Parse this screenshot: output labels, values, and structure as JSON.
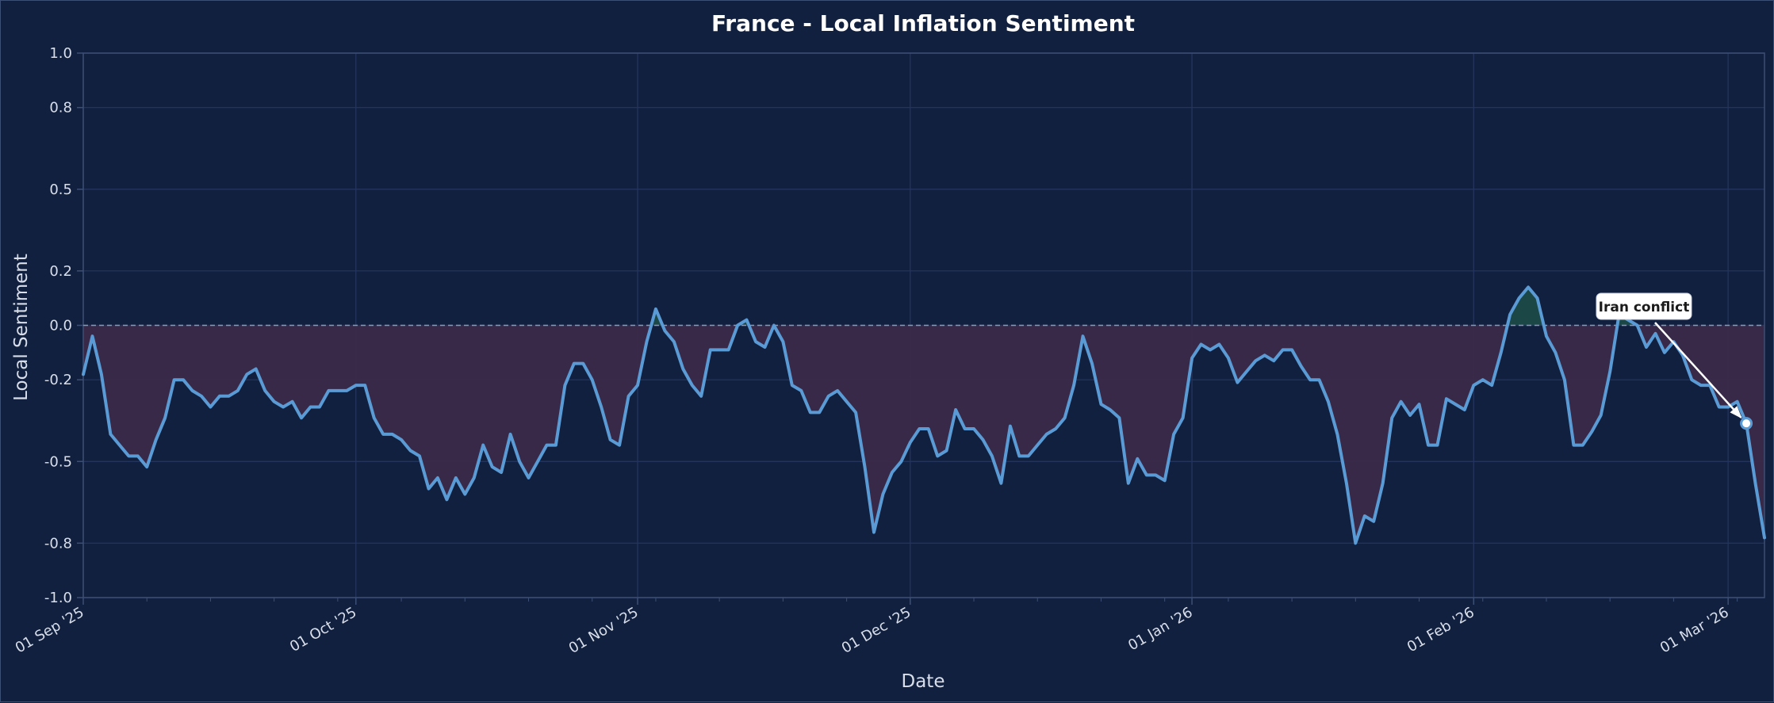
{
  "chart_data": {
    "type": "line",
    "title": "France - Local Inflation Sentiment",
    "xlabel": "Date",
    "ylabel": "Local Sentiment",
    "ylim": [
      -1.0,
      1.0
    ],
    "yticks": [
      1.0,
      0.8,
      0.5,
      0.2,
      0.0,
      -0.2,
      -0.5,
      -0.8,
      -1.0
    ],
    "ytick_labels": [
      "1.0",
      "0.8",
      "0.5",
      "0.2",
      "0.0",
      "-0.2",
      "-0.5",
      "-0.8",
      "-1.0"
    ],
    "xlim": [
      "2025-09-01",
      "2026-03-05"
    ],
    "xticks": [
      "2025-09-01",
      "2025-10-01",
      "2025-11-01",
      "2025-12-01",
      "2026-01-01",
      "2026-02-01",
      "2026-03-01"
    ],
    "xtick_labels": [
      "01 Sep '25",
      "01 Oct '25",
      "01 Nov '25",
      "01 Dec '25",
      "01 Jan '26",
      "01 Feb '26",
      "01 Mar '26"
    ],
    "grid": true,
    "zero_line": true,
    "colors": {
      "line": "#5b9bd5",
      "fill_negative": "#3a2a48",
      "fill_positive": "#1e4a48",
      "grid": "#243660",
      "axes": "#3b4f74"
    },
    "series": [
      {
        "x": [
          "2025-09-01",
          "2025-09-02",
          "2025-09-03",
          "2025-09-04",
          "2025-09-05",
          "2025-09-06",
          "2025-09-07",
          "2025-09-08",
          "2025-09-09",
          "2025-09-10",
          "2025-09-11",
          "2025-09-12",
          "2025-09-13",
          "2025-09-14",
          "2025-09-15",
          "2025-09-16",
          "2025-09-17",
          "2025-09-18",
          "2025-09-19",
          "2025-09-20",
          "2025-09-21",
          "2025-09-22",
          "2025-09-23",
          "2025-09-24",
          "2025-09-25",
          "2025-09-26",
          "2025-09-27",
          "2025-09-28",
          "2025-09-29",
          "2025-09-30",
          "2025-10-01",
          "2025-10-02",
          "2025-10-03",
          "2025-10-04",
          "2025-10-05",
          "2025-10-06",
          "2025-10-07",
          "2025-10-08",
          "2025-10-09",
          "2025-10-10",
          "2025-10-11",
          "2025-10-12",
          "2025-10-13",
          "2025-10-14",
          "2025-10-15",
          "2025-10-16",
          "2025-10-17",
          "2025-10-18",
          "2025-10-19",
          "2025-10-20",
          "2025-10-21",
          "2025-10-22",
          "2025-10-23",
          "2025-10-24",
          "2025-10-25",
          "2025-10-26",
          "2025-10-27",
          "2025-10-28",
          "2025-10-29",
          "2025-10-30",
          "2025-10-31",
          "2025-11-01",
          "2025-11-02",
          "2025-11-03",
          "2025-11-04",
          "2025-11-05",
          "2025-11-06",
          "2025-11-07",
          "2025-11-08",
          "2025-11-09",
          "2025-11-10",
          "2025-11-11",
          "2025-11-12",
          "2025-11-13",
          "2025-11-14",
          "2025-11-15",
          "2025-11-16",
          "2025-11-17",
          "2025-11-18",
          "2025-11-19",
          "2025-11-20",
          "2025-11-21",
          "2025-11-22",
          "2025-11-23",
          "2025-11-24",
          "2025-11-25",
          "2025-11-26",
          "2025-11-27",
          "2025-11-28",
          "2025-11-29",
          "2025-11-30",
          "2025-12-01",
          "2025-12-02",
          "2025-12-03",
          "2025-12-04",
          "2025-12-05",
          "2025-12-06",
          "2025-12-07",
          "2025-12-08",
          "2025-12-09",
          "2025-12-10",
          "2025-12-11",
          "2025-12-12",
          "2025-12-13",
          "2025-12-14",
          "2025-12-15",
          "2025-12-16",
          "2025-12-17",
          "2025-12-18",
          "2025-12-19",
          "2025-12-20",
          "2025-12-21",
          "2025-12-22",
          "2025-12-23",
          "2025-12-24",
          "2025-12-25",
          "2025-12-26",
          "2025-12-27",
          "2025-12-28",
          "2025-12-29",
          "2025-12-30",
          "2025-12-31",
          "2026-01-01",
          "2026-01-02",
          "2026-01-03",
          "2026-01-04",
          "2026-01-05",
          "2026-01-06",
          "2026-01-07",
          "2026-01-08",
          "2026-01-09",
          "2026-01-10",
          "2026-01-11",
          "2026-01-12",
          "2026-01-13",
          "2026-01-14",
          "2026-01-15",
          "2026-01-16",
          "2026-01-17",
          "2026-01-18",
          "2026-01-19",
          "2026-01-20",
          "2026-01-21",
          "2026-01-22",
          "2026-01-23",
          "2026-01-24",
          "2026-01-25",
          "2026-01-26",
          "2026-01-27",
          "2026-01-28",
          "2026-01-29",
          "2026-01-30",
          "2026-01-31",
          "2026-02-01",
          "2026-02-02",
          "2026-02-03",
          "2026-02-04",
          "2026-02-05",
          "2026-02-06",
          "2026-02-07",
          "2026-02-08",
          "2026-02-09",
          "2026-02-10",
          "2026-02-11",
          "2026-02-12",
          "2026-02-13",
          "2026-02-14",
          "2026-02-15",
          "2026-02-16",
          "2026-02-17",
          "2026-02-18",
          "2026-02-19",
          "2026-02-20",
          "2026-02-21",
          "2026-02-22",
          "2026-02-23",
          "2026-02-24",
          "2026-02-25",
          "2026-02-26",
          "2026-02-27",
          "2026-02-28",
          "2026-03-01",
          "2026-03-02",
          "2026-03-03",
          "2026-03-04",
          "2026-03-05"
        ],
        "y": [
          -0.18,
          -0.04,
          -0.18,
          -0.4,
          -0.44,
          -0.48,
          -0.48,
          -0.52,
          -0.42,
          -0.34,
          -0.2,
          -0.2,
          -0.24,
          -0.26,
          -0.3,
          -0.26,
          -0.26,
          -0.24,
          -0.18,
          -0.16,
          -0.24,
          -0.28,
          -0.3,
          -0.28,
          -0.34,
          -0.3,
          -0.3,
          -0.24,
          -0.24,
          -0.24,
          -0.22,
          -0.22,
          -0.34,
          -0.4,
          -0.4,
          -0.42,
          -0.46,
          -0.48,
          -0.6,
          -0.56,
          -0.64,
          -0.56,
          -0.62,
          -0.56,
          -0.44,
          -0.52,
          -0.54,
          -0.4,
          -0.5,
          -0.56,
          -0.5,
          -0.44,
          -0.44,
          -0.22,
          -0.14,
          -0.14,
          -0.2,
          -0.3,
          -0.42,
          -0.44,
          -0.26,
          -0.22,
          -0.06,
          0.06,
          -0.02,
          -0.06,
          -0.16,
          -0.22,
          -0.26,
          -0.09,
          -0.09,
          -0.09,
          0.0,
          0.02,
          -0.06,
          -0.08,
          0.0,
          -0.06,
          -0.22,
          -0.24,
          -0.32,
          -0.32,
          -0.26,
          -0.24,
          -0.28,
          -0.32,
          -0.52,
          -0.76,
          -0.62,
          -0.54,
          -0.5,
          -0.43,
          -0.38,
          -0.38,
          -0.48,
          -0.46,
          -0.31,
          -0.38,
          -0.38,
          -0.42,
          -0.48,
          -0.58,
          -0.37,
          -0.48,
          -0.48,
          -0.44,
          -0.4,
          -0.38,
          -0.34,
          -0.22,
          -0.04,
          -0.14,
          -0.29,
          -0.31,
          -0.34,
          -0.58,
          -0.49,
          -0.55,
          -0.55,
          -0.57,
          -0.4,
          -0.34,
          -0.12,
          -0.07,
          -0.09,
          -0.07,
          -0.12,
          -0.21,
          -0.17,
          -0.13,
          -0.11,
          -0.13,
          -0.09,
          -0.09,
          -0.15,
          -0.2,
          -0.2,
          -0.28,
          -0.4,
          -0.58,
          -0.8,
          -0.7,
          -0.72,
          -0.58,
          -0.34,
          -0.28,
          -0.33,
          -0.29,
          -0.44,
          -0.44,
          -0.27,
          -0.29,
          -0.31,
          -0.22,
          -0.2,
          -0.22,
          -0.1,
          0.04,
          0.1,
          0.14,
          0.1,
          -0.04,
          -0.1,
          -0.2,
          -0.44,
          -0.44,
          -0.39,
          -0.33,
          -0.17,
          0.04,
          0.02,
          0.0,
          -0.08,
          -0.03,
          -0.1,
          -0.06,
          -0.11,
          -0.2,
          -0.22,
          -0.22,
          -0.3,
          -0.3,
          -0.28,
          -0.36,
          -0.58,
          -0.78
        ]
      }
    ],
    "annotations": [
      {
        "text": "Iran conflict",
        "x": "2026-03-03",
        "y": -0.36
      }
    ]
  }
}
